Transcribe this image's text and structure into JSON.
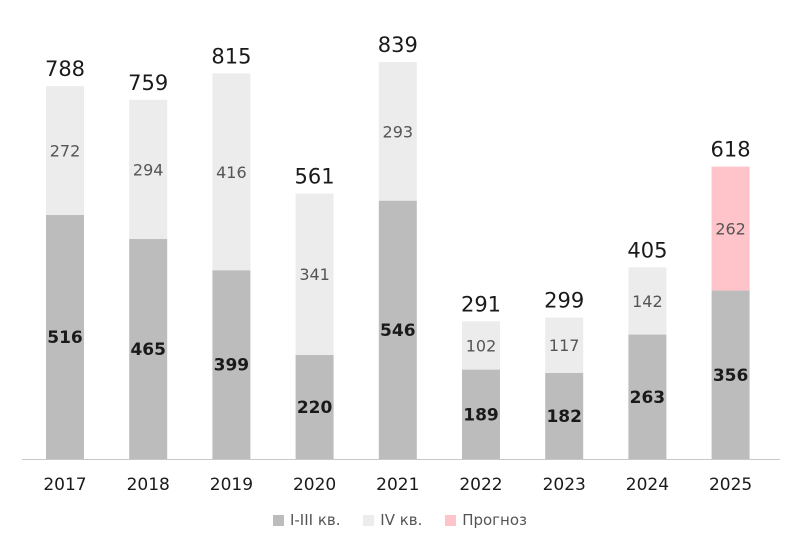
{
  "chart_data": {
    "type": "bar",
    "stacked": true,
    "categories": [
      "2017",
      "2018",
      "2019",
      "2020",
      "2021",
      "2022",
      "2023",
      "2024",
      "2025"
    ],
    "series": [
      {
        "name": "I-III кв.",
        "color": "#bcbcbc",
        "values": [
          516,
          465,
          399,
          220,
          546,
          189,
          182,
          263,
          356
        ]
      },
      {
        "name": "IV кв.",
        "color": "#ececec",
        "values": [
          272,
          294,
          416,
          341,
          293,
          102,
          117,
          142,
          null
        ]
      },
      {
        "name": "Прогноз",
        "color": "#ffc4c9",
        "values": [
          null,
          null,
          null,
          null,
          null,
          null,
          null,
          null,
          262
        ]
      }
    ],
    "totals": [
      788,
      759,
      815,
      561,
      839,
      291,
      299,
      405,
      618
    ],
    "ylim": [
      0,
      839
    ],
    "grid": false,
    "legend_position": "bottom"
  }
}
